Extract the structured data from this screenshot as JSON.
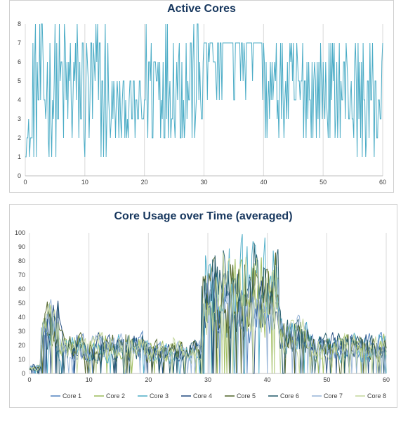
{
  "charts": [
    {
      "type": "line",
      "title": "Active Cores",
      "xlim": [
        0,
        60
      ],
      "ylim": [
        0,
        8
      ],
      "xticks": [
        0,
        10,
        20,
        30,
        40,
        50,
        60
      ],
      "yticks": [
        0,
        1,
        2,
        3,
        4,
        5,
        6,
        7,
        8
      ],
      "grid": "vertical",
      "series": [
        {
          "color": "#4bacc6",
          "note": "single series, step-like jagged values 1-8"
        }
      ]
    },
    {
      "type": "line",
      "title": "Core Usage over Time (averaged)",
      "xlim": [
        0,
        60
      ],
      "ylim": [
        0,
        100
      ],
      "xticks": [
        0,
        10,
        20,
        30,
        40,
        50,
        60
      ],
      "yticks": [
        0,
        10,
        20,
        30,
        40,
        50,
        60,
        70,
        80,
        90,
        100
      ],
      "grid": "vertical",
      "legend_position": "bottom",
      "series": [
        {
          "name": "Core 1",
          "color": "#4f81bd"
        },
        {
          "name": "Core 2",
          "color": "#9bbb59"
        },
        {
          "name": "Core 3",
          "color": "#4bacc6"
        },
        {
          "name": "Core 4",
          "color": "#1f497d"
        },
        {
          "name": "Core 5",
          "color": "#4f6228"
        },
        {
          "name": "Core 6",
          "color": "#215968"
        },
        {
          "name": "Core 7",
          "color": "#95b3d7"
        },
        {
          "name": "Core 8",
          "color": "#c3d69b"
        }
      ]
    }
  ]
}
